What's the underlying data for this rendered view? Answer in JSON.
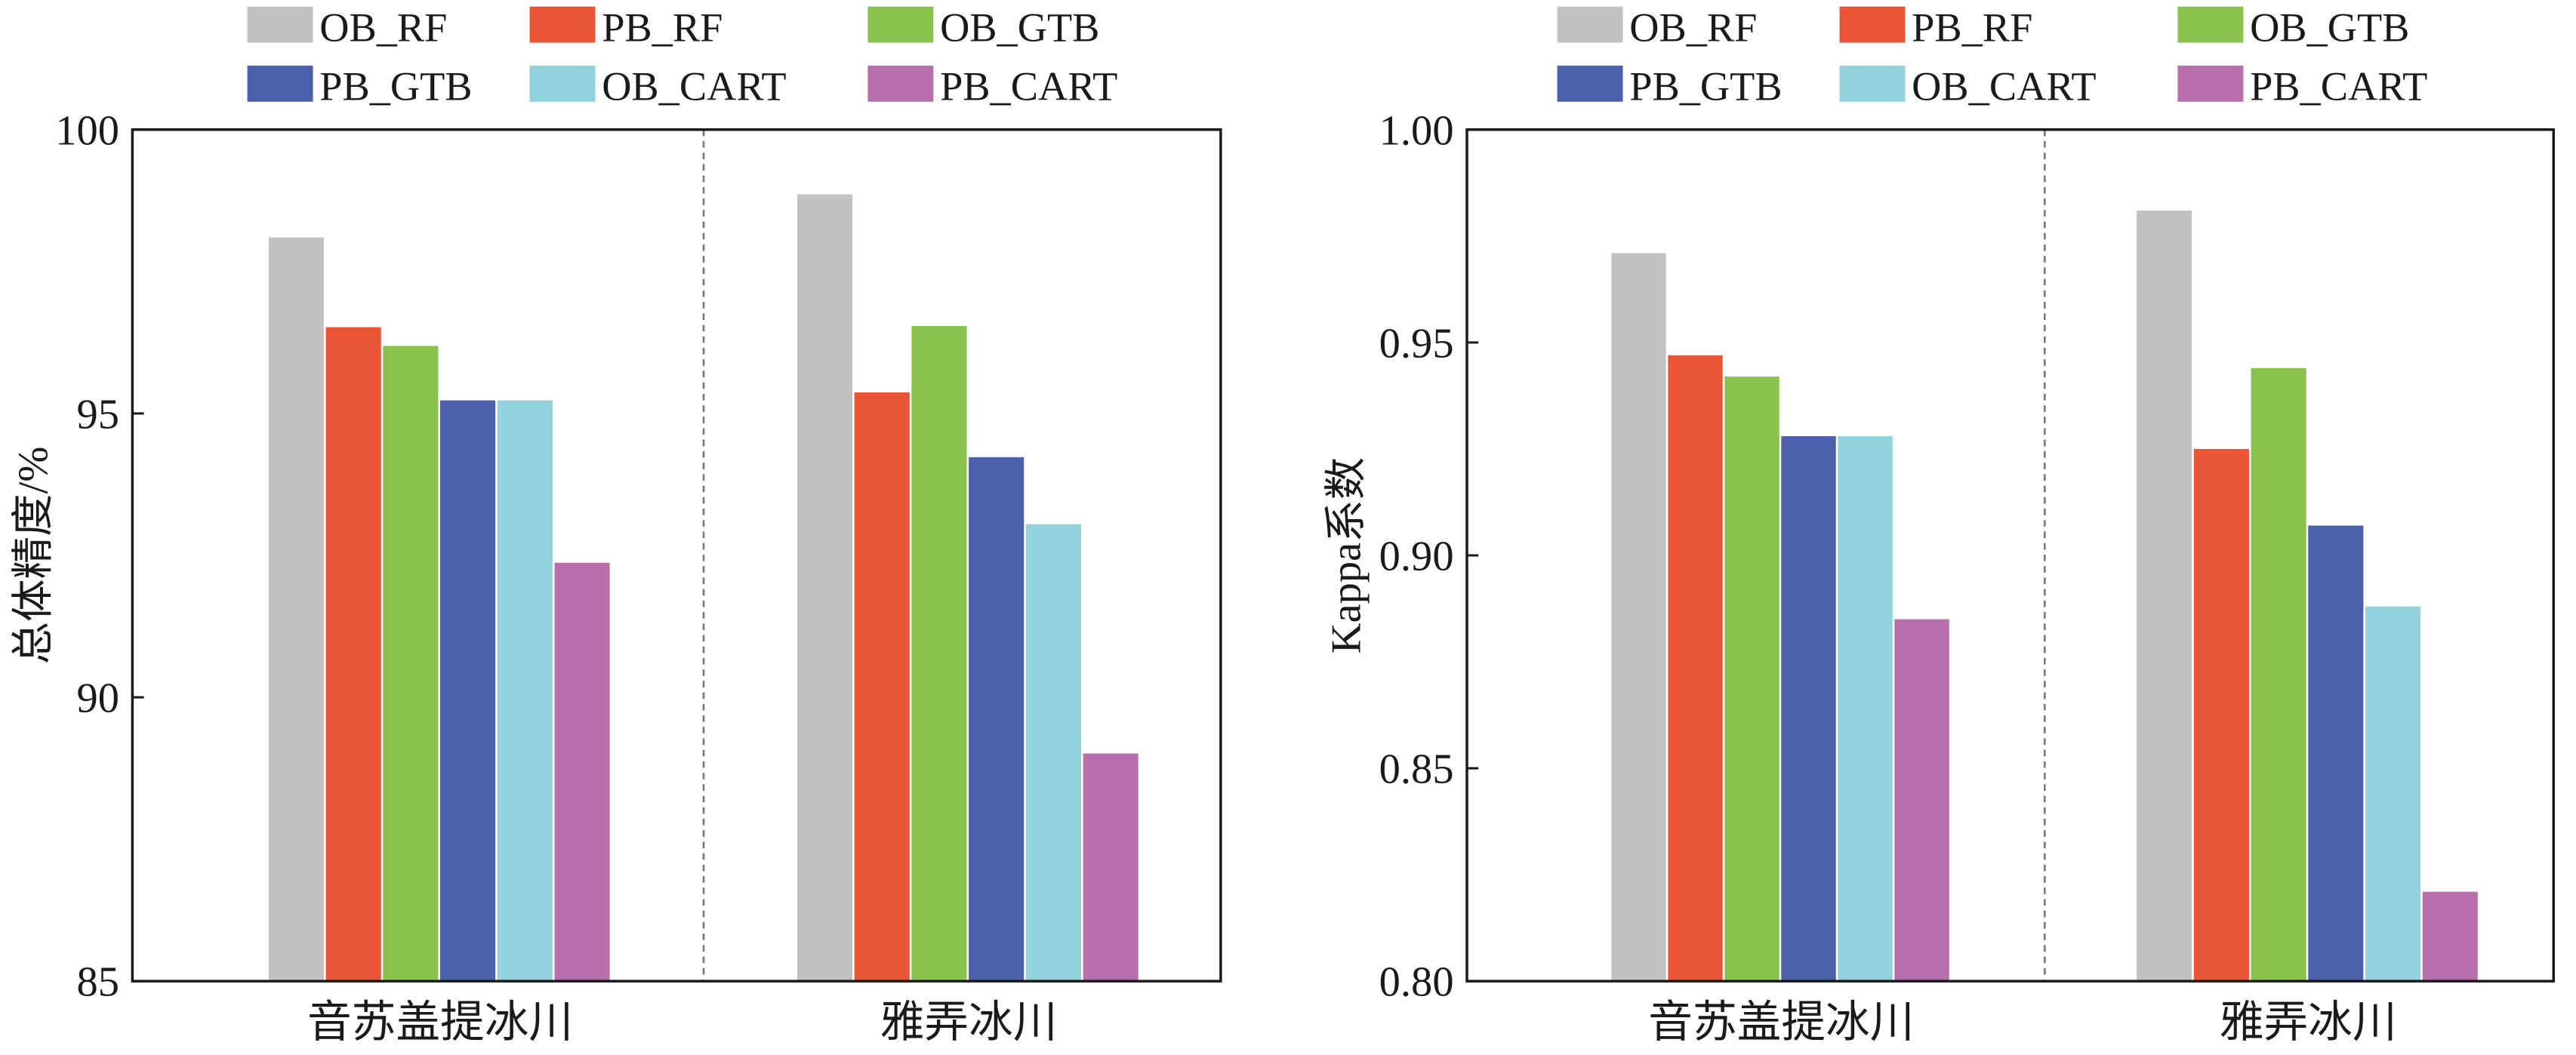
{
  "chart_data": [
    {
      "type": "bar",
      "title": "",
      "xlabel": "",
      "ylabel": "总体精度/%",
      "ylim": [
        85,
        100
      ],
      "yticks": [
        "85",
        "90",
        "95",
        "100"
      ],
      "categories": [
        "音苏盖提冰川",
        "雅弄冰川"
      ],
      "series": [
        {
          "name": "OB_RF",
          "color": "#c1c2c1",
          "values": [
            98.1,
            98.86
          ]
        },
        {
          "name": "PB_RF",
          "color": "#e95535",
          "values": [
            96.52,
            95.37
          ]
        },
        {
          "name": "OB_GTB",
          "color": "#89c34e",
          "values": [
            96.19,
            96.54
          ]
        },
        {
          "name": "PB_GTB",
          "color": "#4a60aa",
          "values": [
            95.23,
            94.23
          ]
        },
        {
          "name": "OB_CART",
          "color": "#91d2dd",
          "values": [
            95.23,
            93.05
          ]
        },
        {
          "name": "PB_CART",
          "color": "#b86fab",
          "values": [
            92.37,
            89.01
          ]
        }
      ],
      "legend_placement": "top"
    },
    {
      "type": "bar",
      "title": "",
      "xlabel": "",
      "ylabel": "Kappa系数",
      "ylim": [
        0.8,
        1.0
      ],
      "yticks": [
        "0.80",
        "0.85",
        "0.90",
        "0.95",
        "1.00"
      ],
      "categories": [
        "音苏盖提冰川",
        "雅弄冰川"
      ],
      "series": [
        {
          "name": "OB_RF",
          "color": "#c1c2c1",
          "values": [
            0.971,
            0.981
          ]
        },
        {
          "name": "PB_RF",
          "color": "#e95535",
          "values": [
            0.947,
            0.925
          ]
        },
        {
          "name": "OB_GTB",
          "color": "#89c34e",
          "values": [
            0.942,
            0.944
          ]
        },
        {
          "name": "PB_GTB",
          "color": "#4a60aa",
          "values": [
            0.928,
            0.907
          ]
        },
        {
          "name": "OB_CART",
          "color": "#91d2dd",
          "values": [
            0.928,
            0.888
          ]
        },
        {
          "name": "PB_CART",
          "color": "#b86fab",
          "values": [
            0.885,
            0.821
          ]
        }
      ],
      "legend_placement": "top"
    }
  ]
}
